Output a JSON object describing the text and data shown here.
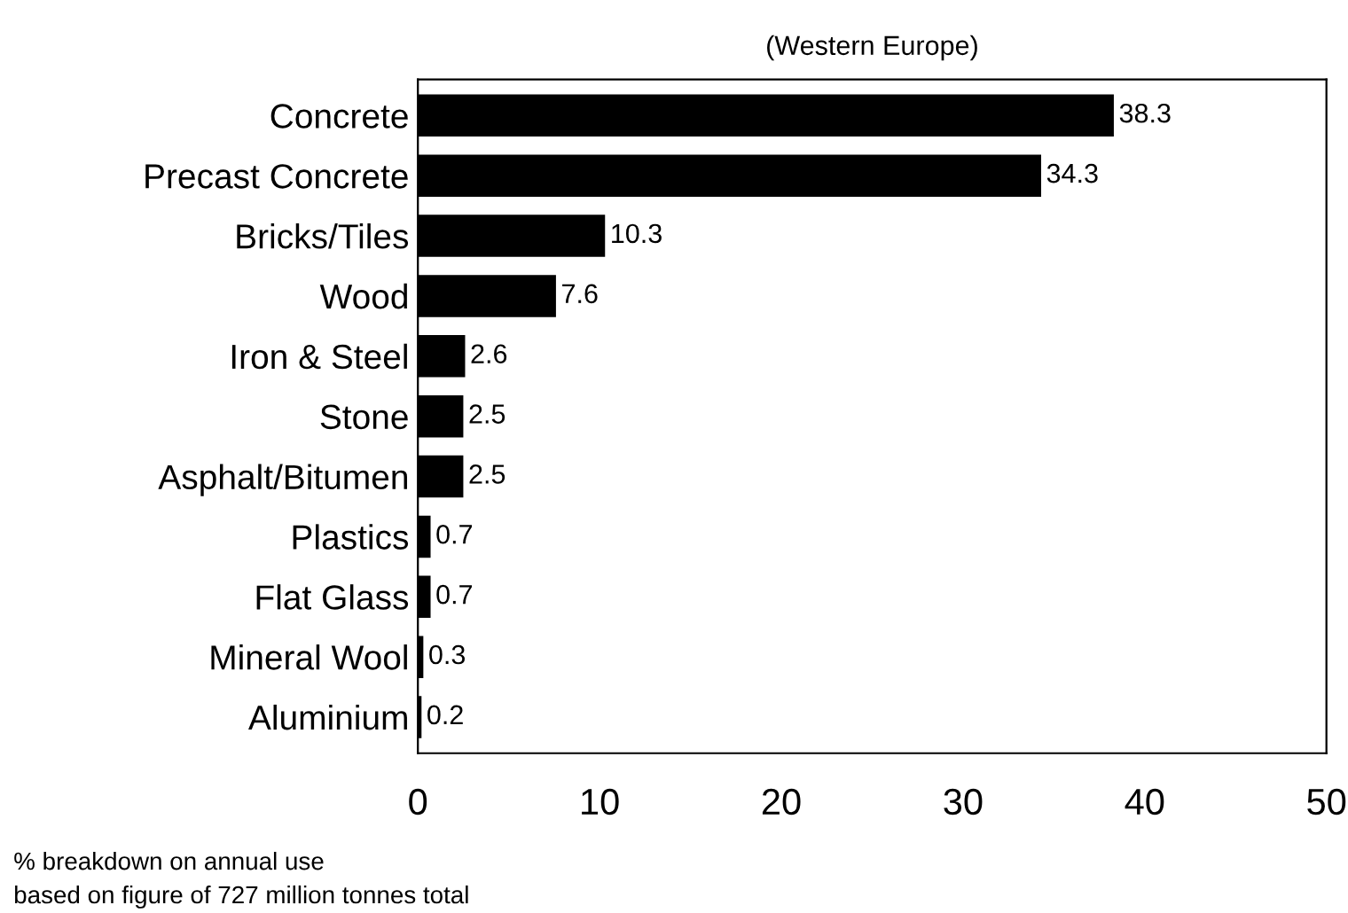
{
  "chart_data": {
    "type": "bar",
    "orientation": "horizontal",
    "subtitle": "(Western Europe)",
    "categories": [
      "Concrete",
      "Precast Concrete",
      "Bricks/Tiles",
      "Wood",
      "Iron & Steel",
      "Stone",
      "Asphalt/Bitumen",
      "Plastics",
      "Flat Glass",
      "Mineral Wool",
      "Aluminium"
    ],
    "values": [
      38.3,
      34.3,
      10.3,
      7.6,
      2.6,
      2.5,
      2.5,
      0.7,
      0.7,
      0.3,
      0.2
    ],
    "color": "#000000",
    "data_labels": true,
    "xlim": [
      0,
      50
    ],
    "xticks": [
      0,
      10,
      20,
      30,
      40,
      50
    ],
    "grid": false,
    "annotations": [
      "% breakdown on annual use\nbased on figure of 727 million tonnes total"
    ]
  }
}
